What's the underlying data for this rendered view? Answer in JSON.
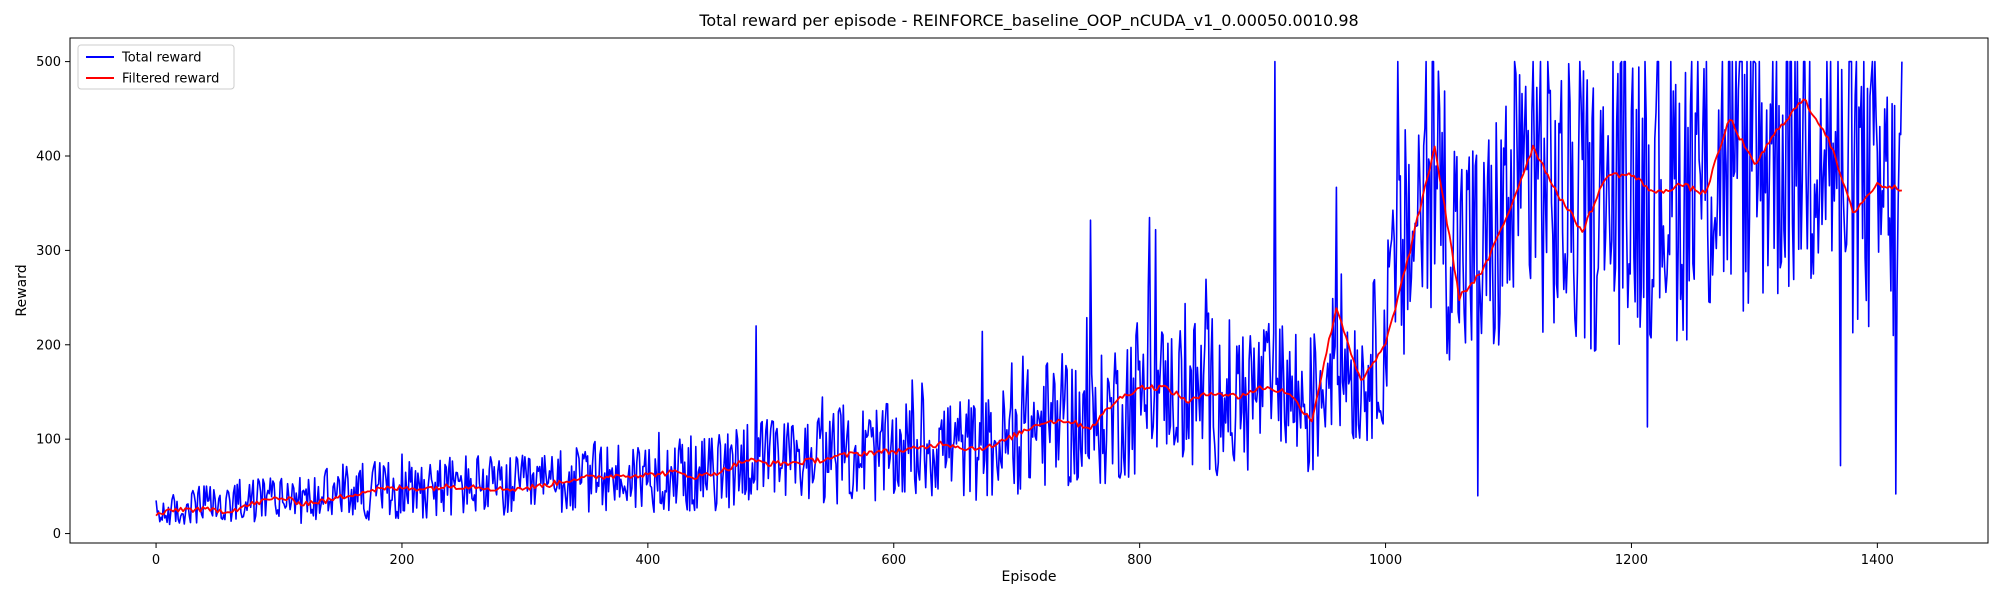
{
  "chart_data": {
    "type": "line",
    "title": "Total reward per episode - REINFORCE_baseline_OOP_nCUDA_v1_0.00050.0010.98",
    "xlabel": "Episode",
    "ylabel": "Reward",
    "xlim": [
      -70,
      1490
    ],
    "ylim": [
      -10,
      525
    ],
    "xticks": [
      0,
      200,
      400,
      600,
      800,
      1000,
      1200,
      1400
    ],
    "yticks": [
      0,
      100,
      200,
      300,
      400,
      500
    ],
    "grid": false,
    "legend": "top-left",
    "series": [
      {
        "name": "Total reward",
        "color": "#0000ff",
        "x": [
          0,
          20,
          40,
          60,
          80,
          100,
          120,
          140,
          160,
          180,
          200,
          220,
          240,
          260,
          280,
          300,
          320,
          340,
          360,
          380,
          400,
          420,
          440,
          460,
          480,
          500,
          520,
          540,
          560,
          580,
          600,
          620,
          640,
          660,
          680,
          700,
          720,
          740,
          760,
          780,
          800,
          820,
          840,
          860,
          880,
          900,
          920,
          940,
          960,
          980,
          1000,
          1020,
          1040,
          1060,
          1080,
          1100,
          1120,
          1140,
          1160,
          1180,
          1200,
          1220,
          1240,
          1260,
          1280,
          1300,
          1320,
          1340,
          1360,
          1380,
          1400,
          1420
        ],
        "y": [
          20,
          25,
          30,
          28,
          35,
          40,
          35,
          40,
          45,
          45,
          48,
          50,
          50,
          52,
          48,
          50,
          52,
          55,
          60,
          60,
          62,
          65,
          62,
          65,
          80,
          75,
          75,
          80,
          85,
          85,
          85,
          90,
          95,
          90,
          90,
          105,
          115,
          120,
          110,
          130,
          150,
          155,
          145,
          150,
          140,
          155,
          150,
          130,
          200,
          160,
          210,
          320,
          380,
          300,
          290,
          340,
          390,
          350,
          340,
          340,
          380,
          370,
          365,
          370,
          420,
          400,
          430,
          450,
          420,
          370,
          360,
          330
        ],
        "peaks": [
          {
            "x": 488,
            "y": 220
          },
          {
            "x": 760,
            "y": 332
          },
          {
            "x": 910,
            "y": 500
          },
          {
            "x": 1010,
            "y": 500
          },
          {
            "x": 1120,
            "y": 500
          },
          {
            "x": 1300,
            "y": 500
          },
          {
            "x": 1420,
            "y": 500
          }
        ],
        "dips": [
          {
            "x": 1075,
            "y": 40
          },
          {
            "x": 1213,
            "y": 113
          },
          {
            "x": 1370,
            "y": 72
          },
          {
            "x": 1415,
            "y": 42
          }
        ]
      },
      {
        "name": "Filtered reward",
        "color": "#ff0000",
        "x": [
          0,
          20,
          40,
          60,
          80,
          100,
          120,
          140,
          160,
          180,
          200,
          220,
          240,
          260,
          280,
          300,
          320,
          340,
          360,
          380,
          400,
          420,
          440,
          460,
          480,
          500,
          520,
          540,
          560,
          580,
          600,
          620,
          640,
          660,
          680,
          700,
          720,
          740,
          760,
          780,
          800,
          820,
          840,
          860,
          880,
          900,
          920,
          940,
          960,
          980,
          1000,
          1020,
          1040,
          1060,
          1080,
          1100,
          1120,
          1140,
          1160,
          1180,
          1200,
          1220,
          1240,
          1260,
          1280,
          1300,
          1320,
          1340,
          1360,
          1380,
          1400,
          1420
        ],
        "y": [
          20,
          26,
          25,
          24,
          32,
          38,
          32,
          35,
          42,
          47,
          48,
          48,
          50,
          50,
          47,
          48,
          52,
          58,
          60,
          62,
          62,
          65,
          60,
          66,
          78,
          74,
          75,
          78,
          83,
          86,
          87,
          90,
          96,
          90,
          92,
          105,
          118,
          120,
          112,
          140,
          155,
          155,
          140,
          150,
          145,
          155,
          150,
          120,
          240,
          160,
          200,
          300,
          410,
          250,
          280,
          340,
          410,
          360,
          320,
          380,
          380,
          360,
          370,
          360,
          440,
          390,
          430,
          460,
          420,
          340,
          370,
          365
        ]
      }
    ]
  }
}
